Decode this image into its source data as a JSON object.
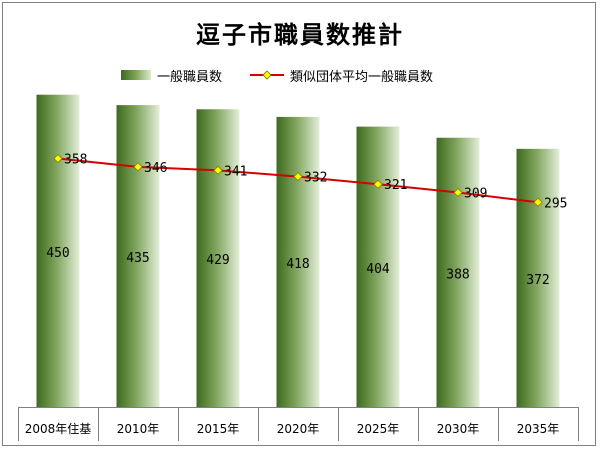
{
  "chart_data": {
    "type": "bar",
    "title": "逗子市職員数推計",
    "categories": [
      "2008年住基",
      "2010年",
      "2015年",
      "2020年",
      "2025年",
      "2030年",
      "2035年"
    ],
    "series": [
      {
        "name": "一般職員数",
        "kind": "bar",
        "values": [
          450,
          435,
          429,
          418,
          404,
          388,
          372
        ]
      },
      {
        "name": "類似団体平均一般職員数",
        "kind": "line",
        "values": [
          358,
          346,
          341,
          332,
          321,
          309,
          295
        ]
      }
    ],
    "ylim": [
      0,
      500
    ],
    "grid": false,
    "legend_position": "top",
    "colors": {
      "bar_dark": "#3d6b1f",
      "bar_light": "#e3eed8",
      "line": "#d40000",
      "marker": "#ffff00"
    }
  }
}
